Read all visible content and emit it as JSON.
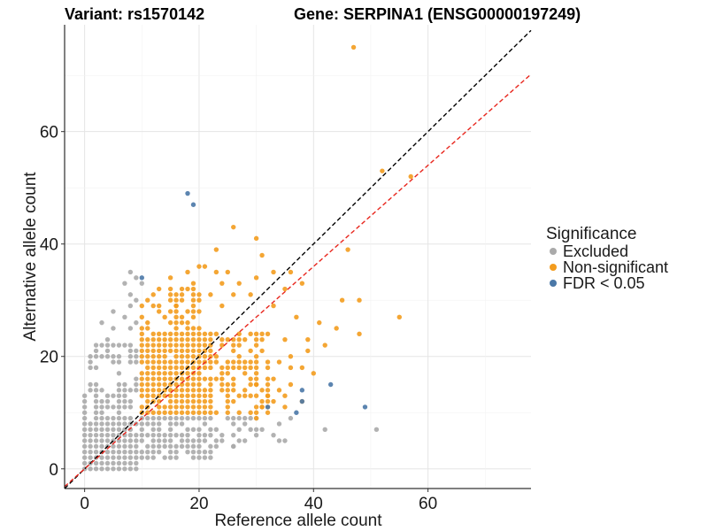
{
  "chart_data": {
    "type": "scatter",
    "title_left": "Variant: rs1570142",
    "title_right": "Gene: SERPINA1 (ENSG00000197249)",
    "xlabel": "Reference allele count",
    "ylabel": "Alternative allele count",
    "xlim": [
      -3.5,
      78
    ],
    "ylim": [
      -3.5,
      79
    ],
    "xticks": [
      0,
      20,
      40,
      60
    ],
    "yticks": [
      0,
      20,
      40,
      60
    ],
    "grid": true,
    "legend_position": "right",
    "legend": {
      "title": "Significance",
      "items": [
        {
          "name": "Excluded",
          "color": "#aaaaaa"
        },
        {
          "name": "Non-significant",
          "color": "#f39c1e"
        },
        {
          "name": "FDR < 0.05",
          "color": "#4a78a7"
        }
      ]
    },
    "reference_lines": [
      {
        "name": "identity",
        "slope": 1,
        "intercept": 0,
        "color": "#000000",
        "dash": true
      },
      {
        "name": "fitted",
        "slope": 0.9,
        "intercept": 0,
        "color": "#e8261d",
        "dash": true
      }
    ],
    "series": [
      {
        "name": "Excluded",
        "color": "#aaaaaa",
        "dense_regions": [
          {
            "x": [
              0,
              9
            ],
            "y": [
              0,
              8
            ],
            "fill": 0.97
          },
          {
            "x": [
              0,
              9
            ],
            "y": [
              9,
              14
            ],
            "fill": 0.75
          },
          {
            "x": [
              1,
              9
            ],
            "y": [
              15,
              22
            ],
            "fill": 0.45
          },
          {
            "x": [
              10,
              22
            ],
            "y": [
              2,
              9
            ],
            "fill": 0.85
          },
          {
            "x": [
              23,
              30
            ],
            "y": [
              4,
              9
            ],
            "fill": 0.45
          }
        ],
        "points": [
          [
            8,
            35
          ],
          [
            9,
            34
          ],
          [
            7,
            33
          ],
          [
            8,
            31
          ],
          [
            5,
            28
          ],
          [
            8,
            29
          ],
          [
            9,
            30
          ],
          [
            3,
            26
          ],
          [
            5,
            25
          ],
          [
            4,
            23
          ],
          [
            9,
            26
          ],
          [
            7,
            27
          ],
          [
            5,
            19
          ],
          [
            8,
            25
          ],
          [
            10,
            33
          ],
          [
            31,
            7
          ],
          [
            33,
            6
          ],
          [
            34,
            5
          ],
          [
            35,
            5
          ],
          [
            42,
            7
          ],
          [
            51,
            7
          ],
          [
            28,
            8
          ],
          [
            30,
            6
          ],
          [
            27,
            5
          ],
          [
            26,
            4
          ],
          [
            36,
            9
          ],
          [
            34,
            8
          ],
          [
            29,
            9
          ]
        ]
      },
      {
        "name": "Non-significant",
        "color": "#f39c1e",
        "dense_regions": [
          {
            "x": [
              10,
              22
            ],
            "y": [
              10,
              24
            ],
            "fill": 0.95
          },
          {
            "x": [
              23,
              32
            ],
            "y": [
              10,
              24
            ],
            "fill": 0.55
          },
          {
            "x": [
              10,
              20
            ],
            "y": [
              25,
              32
            ],
            "fill": 0.45
          }
        ],
        "points": [
          [
            47,
            75
          ],
          [
            52,
            53
          ],
          [
            57,
            52
          ],
          [
            26,
            43
          ],
          [
            30,
            41
          ],
          [
            23,
            39
          ],
          [
            31,
            38
          ],
          [
            46,
            39
          ],
          [
            21,
            36
          ],
          [
            18,
            35
          ],
          [
            20,
            36
          ],
          [
            23,
            35
          ],
          [
            25,
            35
          ],
          [
            33,
            35
          ],
          [
            36,
            35
          ],
          [
            30,
            34
          ],
          [
            15,
            34
          ],
          [
            19,
            33
          ],
          [
            24,
            33
          ],
          [
            27,
            33
          ],
          [
            38,
            33
          ],
          [
            35,
            32
          ],
          [
            29,
            31
          ],
          [
            45,
            30
          ],
          [
            48,
            30
          ],
          [
            22,
            31
          ],
          [
            26,
            31
          ],
          [
            33,
            29
          ],
          [
            55,
            27
          ],
          [
            37,
            27
          ],
          [
            16,
            29
          ],
          [
            24,
            29
          ],
          [
            41,
            26
          ],
          [
            44,
            25
          ],
          [
            48,
            24
          ],
          [
            39,
            23
          ],
          [
            35,
            23
          ],
          [
            42,
            22
          ],
          [
            39,
            21
          ],
          [
            38,
            18
          ],
          [
            36,
            18
          ],
          [
            40,
            17
          ],
          [
            36,
            15
          ],
          [
            38,
            12
          ],
          [
            35,
            13
          ],
          [
            34,
            14
          ],
          [
            33,
            12
          ],
          [
            35,
            11
          ],
          [
            31,
            11
          ],
          [
            29,
            10
          ],
          [
            30,
            9
          ],
          [
            32,
            13
          ],
          [
            30,
            15
          ],
          [
            33,
            16
          ],
          [
            34,
            19
          ],
          [
            36,
            20
          ]
        ]
      },
      {
        "name": "FDR < 0.05",
        "color": "#4a78a7",
        "points": [
          [
            18,
            49
          ],
          [
            19,
            47
          ],
          [
            10,
            34
          ],
          [
            38,
            14
          ],
          [
            43,
            15
          ],
          [
            38,
            12
          ],
          [
            32,
            11
          ],
          [
            49,
            11
          ],
          [
            37,
            10
          ]
        ]
      }
    ]
  }
}
